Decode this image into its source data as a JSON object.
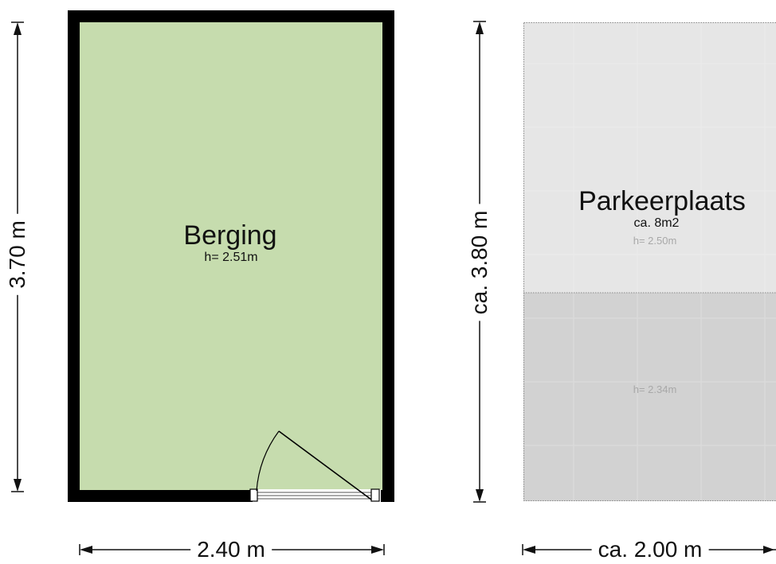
{
  "rooms": {
    "berging": {
      "name": "Berging",
      "height": "h= 2.51m",
      "fill": "#c6dcae"
    },
    "parkeerplaats": {
      "name": "Parkeerplaats",
      "area": "ca. 8m2",
      "height_upper": "h= 2.50m",
      "height_lower": "h= 2.34m",
      "fill_upper": "#e6e6e6",
      "fill_lower": "#d2d2d2"
    }
  },
  "dimensions": {
    "berging_height": "3.70 m",
    "berging_width": "2.40 m",
    "parking_height": "ca. 3.80 m",
    "parking_width": "ca. 2.00 m"
  },
  "colors": {
    "wall": "#000000",
    "dimension_line": "#111111"
  }
}
